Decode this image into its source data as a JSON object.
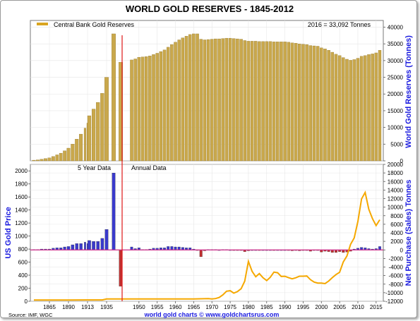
{
  "chart_data": [
    {
      "id": "reserves",
      "type": "bar",
      "title": "WORLD GOLD RESERVES - 1845-2012",
      "ylabel_right": "World Gold Reserves (Tonnes)",
      "legend": "Central Bank Gold Reserves",
      "annotation": "2016 = 33,092 Tonnes",
      "legend_position": "top-left",
      "ylim": [
        0,
        42000
      ],
      "yticks": [
        "0",
        "5000",
        "10000",
        "15000",
        "20000",
        "25000",
        "30000",
        "35000",
        "40000"
      ],
      "grid": true,
      "series": [
        {
          "name": "Central Bank Gold Reserves",
          "color": "#c9a84c",
          "points": [
            [
              1845,
              200
            ],
            [
              1850,
              300
            ],
            [
              1855,
              500
            ],
            [
              1860,
              700
            ],
            [
              1865,
              900
            ],
            [
              1870,
              1300
            ],
            [
              1875,
              1800
            ],
            [
              1880,
              2300
            ],
            [
              1885,
              3000
            ],
            [
              1890,
              3800
            ],
            [
              1895,
              5000
            ],
            [
              1900,
              6500
            ],
            [
              1905,
              8000
            ],
            [
              1910,
              9800
            ],
            [
              1913,
              11300
            ],
            [
              1915,
              13500
            ],
            [
              1920,
              15500
            ],
            [
              1925,
              17500
            ],
            [
              1930,
              20200
            ],
            [
              1935,
              25000
            ],
            [
              1940,
              38000
            ],
            [
              1945,
              29500
            ],
            [
              1948,
              30200
            ],
            [
              1949,
              30500
            ],
            [
              1950,
              31000
            ],
            [
              1951,
              31100
            ],
            [
              1952,
              31200
            ],
            [
              1953,
              31400
            ],
            [
              1954,
              31800
            ],
            [
              1955,
              32200
            ],
            [
              1956,
              32700
            ],
            [
              1957,
              33200
            ],
            [
              1958,
              34000
            ],
            [
              1959,
              34800
            ],
            [
              1960,
              35500
            ],
            [
              1961,
              36200
            ],
            [
              1962,
              36800
            ],
            [
              1963,
              37300
            ],
            [
              1964,
              37800
            ],
            [
              1965,
              38000
            ],
            [
              1966,
              38000
            ],
            [
              1967,
              36400
            ],
            [
              1968,
              36200
            ],
            [
              1969,
              36300
            ],
            [
              1970,
              36400
            ],
            [
              1971,
              36500
            ],
            [
              1972,
              36500
            ],
            [
              1973,
              36600
            ],
            [
              1974,
              36700
            ],
            [
              1975,
              36700
            ],
            [
              1976,
              36600
            ],
            [
              1977,
              36500
            ],
            [
              1978,
              36400
            ],
            [
              1979,
              36000
            ],
            [
              1980,
              35800
            ],
            [
              1981,
              35800
            ],
            [
              1982,
              35800
            ],
            [
              1983,
              35700
            ],
            [
              1984,
              35700
            ],
            [
              1985,
              35700
            ],
            [
              1986,
              35700
            ],
            [
              1987,
              35600
            ],
            [
              1988,
              35600
            ],
            [
              1989,
              35600
            ],
            [
              1990,
              35600
            ],
            [
              1991,
              35500
            ],
            [
              1992,
              35300
            ],
            [
              1993,
              35200
            ],
            [
              1994,
              35000
            ],
            [
              1995,
              34900
            ],
            [
              1996,
              34800
            ],
            [
              1997,
              34500
            ],
            [
              1998,
              34400
            ],
            [
              1999,
              34300
            ],
            [
              2000,
              33800
            ],
            [
              2001,
              33500
            ],
            [
              2002,
              33100
            ],
            [
              2003,
              32500
            ],
            [
              2004,
              31900
            ],
            [
              2005,
              31500
            ],
            [
              2006,
              30900
            ],
            [
              2007,
              30400
            ],
            [
              2008,
              30100
            ],
            [
              2009,
              30300
            ],
            [
              2010,
              30700
            ],
            [
              2011,
              31300
            ],
            [
              2012,
              31500
            ],
            [
              2013,
              31800
            ],
            [
              2014,
              32000
            ],
            [
              2015,
              32300
            ],
            [
              2016,
              33092
            ]
          ]
        }
      ]
    },
    {
      "id": "price-and-flows",
      "type": "line",
      "ylabel_left": "US Gold Price",
      "ylabel_right": "Net Purchase (Sales) Tonnes",
      "ylim_left": [
        0,
        2100
      ],
      "yticks_left": [
        "0",
        "200",
        "400",
        "600",
        "800",
        "1000",
        "1200",
        "1400",
        "1600",
        "1800",
        "2000"
      ],
      "ylim_right": [
        -12000,
        20000
      ],
      "yticks_right": [
        "-12000",
        "-10000",
        "-8000",
        "-6000",
        "-4000",
        "-2000",
        "0",
        "2000",
        "4000",
        "6000",
        "8000",
        "10000",
        "12000",
        "14000",
        "16000",
        "18000",
        "20000"
      ],
      "xticks": [
        "1865",
        "1890",
        "1913",
        "1935",
        "1950",
        "1955",
        "1960",
        "1965",
        "1970",
        "1975",
        "1980",
        "1985",
        "1990",
        "1995",
        "2000",
        "2005",
        "2010",
        "2015"
      ],
      "annotations": [
        "5 Year Data",
        "Annual Data"
      ],
      "grid": true,
      "series": [
        {
          "name": "US Gold Price",
          "color": "#f5a800",
          "points": [
            [
              1845,
              20
            ],
            [
              1865,
              20
            ],
            [
              1890,
              20
            ],
            [
              1913,
              21
            ],
            [
              1930,
              21
            ],
            [
              1935,
              35
            ],
            [
              1950,
              35
            ],
            [
              1955,
              35
            ],
            [
              1960,
              35
            ],
            [
              1965,
              35
            ],
            [
              1968,
              39
            ],
            [
              1969,
              41
            ],
            [
              1970,
              36
            ],
            [
              1971,
              41
            ],
            [
              1972,
              58
            ],
            [
              1973,
              97
            ],
            [
              1974,
              154
            ],
            [
              1975,
              161
            ],
            [
              1976,
              125
            ],
            [
              1977,
              148
            ],
            [
              1978,
              193
            ],
            [
              1979,
              307
            ],
            [
              1980,
              612
            ],
            [
              1981,
              460
            ],
            [
              1982,
              376
            ],
            [
              1983,
              424
            ],
            [
              1984,
              361
            ],
            [
              1985,
              317
            ],
            [
              1986,
              368
            ],
            [
              1987,
              447
            ],
            [
              1988,
              437
            ],
            [
              1989,
              381
            ],
            [
              1990,
              383
            ],
            [
              1991,
              362
            ],
            [
              1992,
              344
            ],
            [
              1993,
              360
            ],
            [
              1994,
              384
            ],
            [
              1995,
              384
            ],
            [
              1996,
              388
            ],
            [
              1997,
              331
            ],
            [
              1998,
              294
            ],
            [
              1999,
              279
            ],
            [
              2000,
              279
            ],
            [
              2001,
              271
            ],
            [
              2002,
              310
            ],
            [
              2003,
              363
            ],
            [
              2004,
              409
            ],
            [
              2005,
              444
            ],
            [
              2006,
              603
            ],
            [
              2007,
              695
            ],
            [
              2008,
              872
            ],
            [
              2009,
              972
            ],
            [
              2010,
              1224
            ],
            [
              2011,
              1571
            ],
            [
              2012,
              1669
            ],
            [
              2013,
              1411
            ],
            [
              2014,
              1266
            ],
            [
              2015,
              1160
            ],
            [
              2016,
              1250
            ]
          ]
        },
        {
          "name": "Net Purchase (Sales) Tonnes",
          "color_positive": "#3a3acc",
          "color_negative": "#c03030",
          "points": [
            [
              1845,
              100
            ],
            [
              1850,
              100
            ],
            [
              1855,
              200
            ],
            [
              1860,
              200
            ],
            [
              1865,
              200
            ],
            [
              1870,
              400
            ],
            [
              1875,
              500
            ],
            [
              1880,
              500
            ],
            [
              1885,
              700
            ],
            [
              1890,
              800
            ],
            [
              1895,
              1200
            ],
            [
              1900,
              1500
            ],
            [
              1905,
              1500
            ],
            [
              1910,
              1800
            ],
            [
              1913,
              1500
            ],
            [
              1915,
              2200
            ],
            [
              1920,
              2000
            ],
            [
              1925,
              2000
            ],
            [
              1930,
              2700
            ],
            [
              1935,
              4800
            ],
            [
              1940,
              18000
            ],
            [
              1945,
              -8500
            ],
            [
              1948,
              700
            ],
            [
              1949,
              300
            ],
            [
              1950,
              500
            ],
            [
              1951,
              100
            ],
            [
              1952,
              100
            ],
            [
              1953,
              200
            ],
            [
              1954,
              400
            ],
            [
              1955,
              400
            ],
            [
              1956,
              500
            ],
            [
              1957,
              500
            ],
            [
              1958,
              800
            ],
            [
              1959,
              800
            ],
            [
              1960,
              700
            ],
            [
              1961,
              700
            ],
            [
              1962,
              600
            ],
            [
              1963,
              500
            ],
            [
              1964,
              500
            ],
            [
              1965,
              200
            ],
            [
              1966,
              -100
            ],
            [
              1967,
              -1600
            ],
            [
              1968,
              -200
            ],
            [
              1969,
              100
            ],
            [
              1970,
              100
            ],
            [
              1971,
              100
            ],
            [
              1972,
              0
            ],
            [
              1973,
              100
            ],
            [
              1974,
              100
            ],
            [
              1975,
              0
            ],
            [
              1976,
              -100
            ],
            [
              1977,
              -100
            ],
            [
              1978,
              -100
            ],
            [
              1979,
              -400
            ],
            [
              1980,
              -200
            ],
            [
              1981,
              0
            ],
            [
              1982,
              0
            ],
            [
              1983,
              -100
            ],
            [
              1984,
              0
            ],
            [
              1985,
              0
            ],
            [
              1986,
              0
            ],
            [
              1987,
              -100
            ],
            [
              1988,
              0
            ],
            [
              1989,
              0
            ],
            [
              1990,
              0
            ],
            [
              1991,
              -100
            ],
            [
              1992,
              -200
            ],
            [
              1993,
              -100
            ],
            [
              1994,
              -200
            ],
            [
              1995,
              -100
            ],
            [
              1996,
              -100
            ],
            [
              1997,
              -300
            ],
            [
              1998,
              -100
            ],
            [
              1999,
              -100
            ],
            [
              2000,
              -500
            ],
            [
              2001,
              -300
            ],
            [
              2002,
              -400
            ],
            [
              2003,
              -600
            ],
            [
              2004,
              -600
            ],
            [
              2005,
              -400
            ],
            [
              2006,
              -600
            ],
            [
              2007,
              -500
            ],
            [
              2008,
              -300
            ],
            [
              2009,
              200
            ],
            [
              2010,
              400
            ],
            [
              2011,
              600
            ],
            [
              2012,
              500
            ],
            [
              2013,
              300
            ],
            [
              2014,
              200
            ],
            [
              2015,
              300
            ],
            [
              2016,
              800
            ]
          ]
        }
      ]
    }
  ],
  "footer": {
    "source": "Source: IMF, WGC",
    "credit": "world gold charts © www.goldchartsrus.com"
  }
}
